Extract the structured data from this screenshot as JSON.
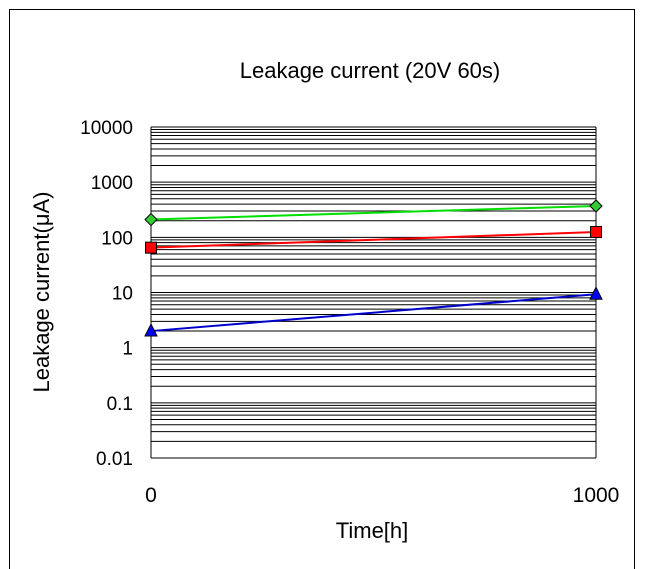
{
  "chart_data": {
    "type": "line",
    "title": "Leakage current (20V 60s)",
    "xlabel": "Time[h]",
    "ylabel": "Leakage current(μA)",
    "x": [
      0,
      1000
    ],
    "x_ticks": [
      "0",
      "1000"
    ],
    "y_scale": "log",
    "ylim": [
      0.01,
      10000
    ],
    "y_ticks": [
      "10000",
      "1000",
      "100",
      "10",
      "1",
      "0.1",
      "0.01"
    ],
    "grid": true,
    "legend": "none",
    "series": [
      {
        "values": [
          210,
          370
        ],
        "color": "#00e000",
        "marker": "diamond",
        "marker_fill": "#33cc33"
      },
      {
        "values": [
          65,
          125
        ],
        "color": "#ff0000",
        "marker": "square",
        "marker_fill": "#ff0000"
      },
      {
        "values": [
          2,
          9.3
        ],
        "color": "#0000cc",
        "marker": "triangle",
        "marker_fill": "#0000ff"
      }
    ]
  }
}
